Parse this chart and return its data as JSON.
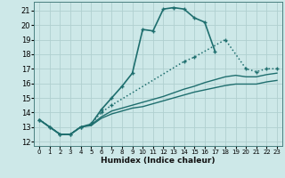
{
  "xlabel": "Humidex (Indice chaleur)",
  "bg_color": "#cde8e8",
  "grid_color": "#b0d0d0",
  "line_color": "#1e6e6e",
  "xlim": [
    -0.5,
    23.5
  ],
  "ylim": [
    11.7,
    21.6
  ],
  "yticks": [
    12,
    13,
    14,
    15,
    16,
    17,
    18,
    19,
    20,
    21
  ],
  "xticks": [
    0,
    1,
    2,
    3,
    4,
    5,
    6,
    7,
    8,
    9,
    10,
    11,
    12,
    13,
    14,
    15,
    16,
    17,
    18,
    19,
    20,
    21,
    22,
    23
  ],
  "series": [
    {
      "x": [
        0,
        1,
        2,
        3,
        4,
        5,
        6,
        7,
        8,
        9,
        10,
        11,
        12,
        13,
        14,
        15,
        16,
        17
      ],
      "y": [
        13.5,
        13.0,
        12.5,
        12.5,
        13.0,
        13.2,
        14.2,
        15.0,
        15.8,
        16.7,
        19.7,
        19.6,
        21.1,
        21.2,
        21.1,
        20.5,
        20.2,
        18.2
      ],
      "linestyle": "-",
      "marker": true,
      "linewidth": 1.2
    },
    {
      "x": [
        0,
        1,
        2,
        3,
        4,
        5,
        6,
        7,
        14,
        15,
        18,
        20,
        21,
        22,
        23
      ],
      "y": [
        13.5,
        13.0,
        12.5,
        12.5,
        13.0,
        13.2,
        14.0,
        14.5,
        17.5,
        17.8,
        19.0,
        17.0,
        16.8,
        17.0,
        17.0
      ],
      "linestyle": ":",
      "marker": true,
      "linewidth": 1.1
    },
    {
      "x": [
        0,
        1,
        2,
        3,
        4,
        5,
        6,
        7,
        8,
        9,
        10,
        11,
        12,
        13,
        14,
        15,
        16,
        17,
        18,
        19,
        20,
        21,
        22,
        23
      ],
      "y": [
        13.5,
        13.0,
        12.5,
        12.5,
        13.0,
        13.15,
        13.7,
        14.1,
        14.3,
        14.5,
        14.7,
        14.9,
        15.1,
        15.35,
        15.6,
        15.8,
        16.05,
        16.25,
        16.45,
        16.55,
        16.45,
        16.45,
        16.6,
        16.7
      ],
      "linestyle": "-",
      "marker": false,
      "linewidth": 1.0
    },
    {
      "x": [
        0,
        1,
        2,
        3,
        4,
        5,
        6,
        7,
        8,
        9,
        10,
        11,
        12,
        13,
        14,
        15,
        16,
        17,
        18,
        19,
        20,
        21,
        22,
        23
      ],
      "y": [
        13.5,
        13.0,
        12.5,
        12.5,
        13.0,
        13.1,
        13.6,
        13.9,
        14.1,
        14.3,
        14.4,
        14.6,
        14.8,
        15.0,
        15.2,
        15.4,
        15.55,
        15.7,
        15.85,
        15.95,
        15.95,
        15.95,
        16.1,
        16.2
      ],
      "linestyle": "-",
      "marker": false,
      "linewidth": 1.0
    }
  ]
}
